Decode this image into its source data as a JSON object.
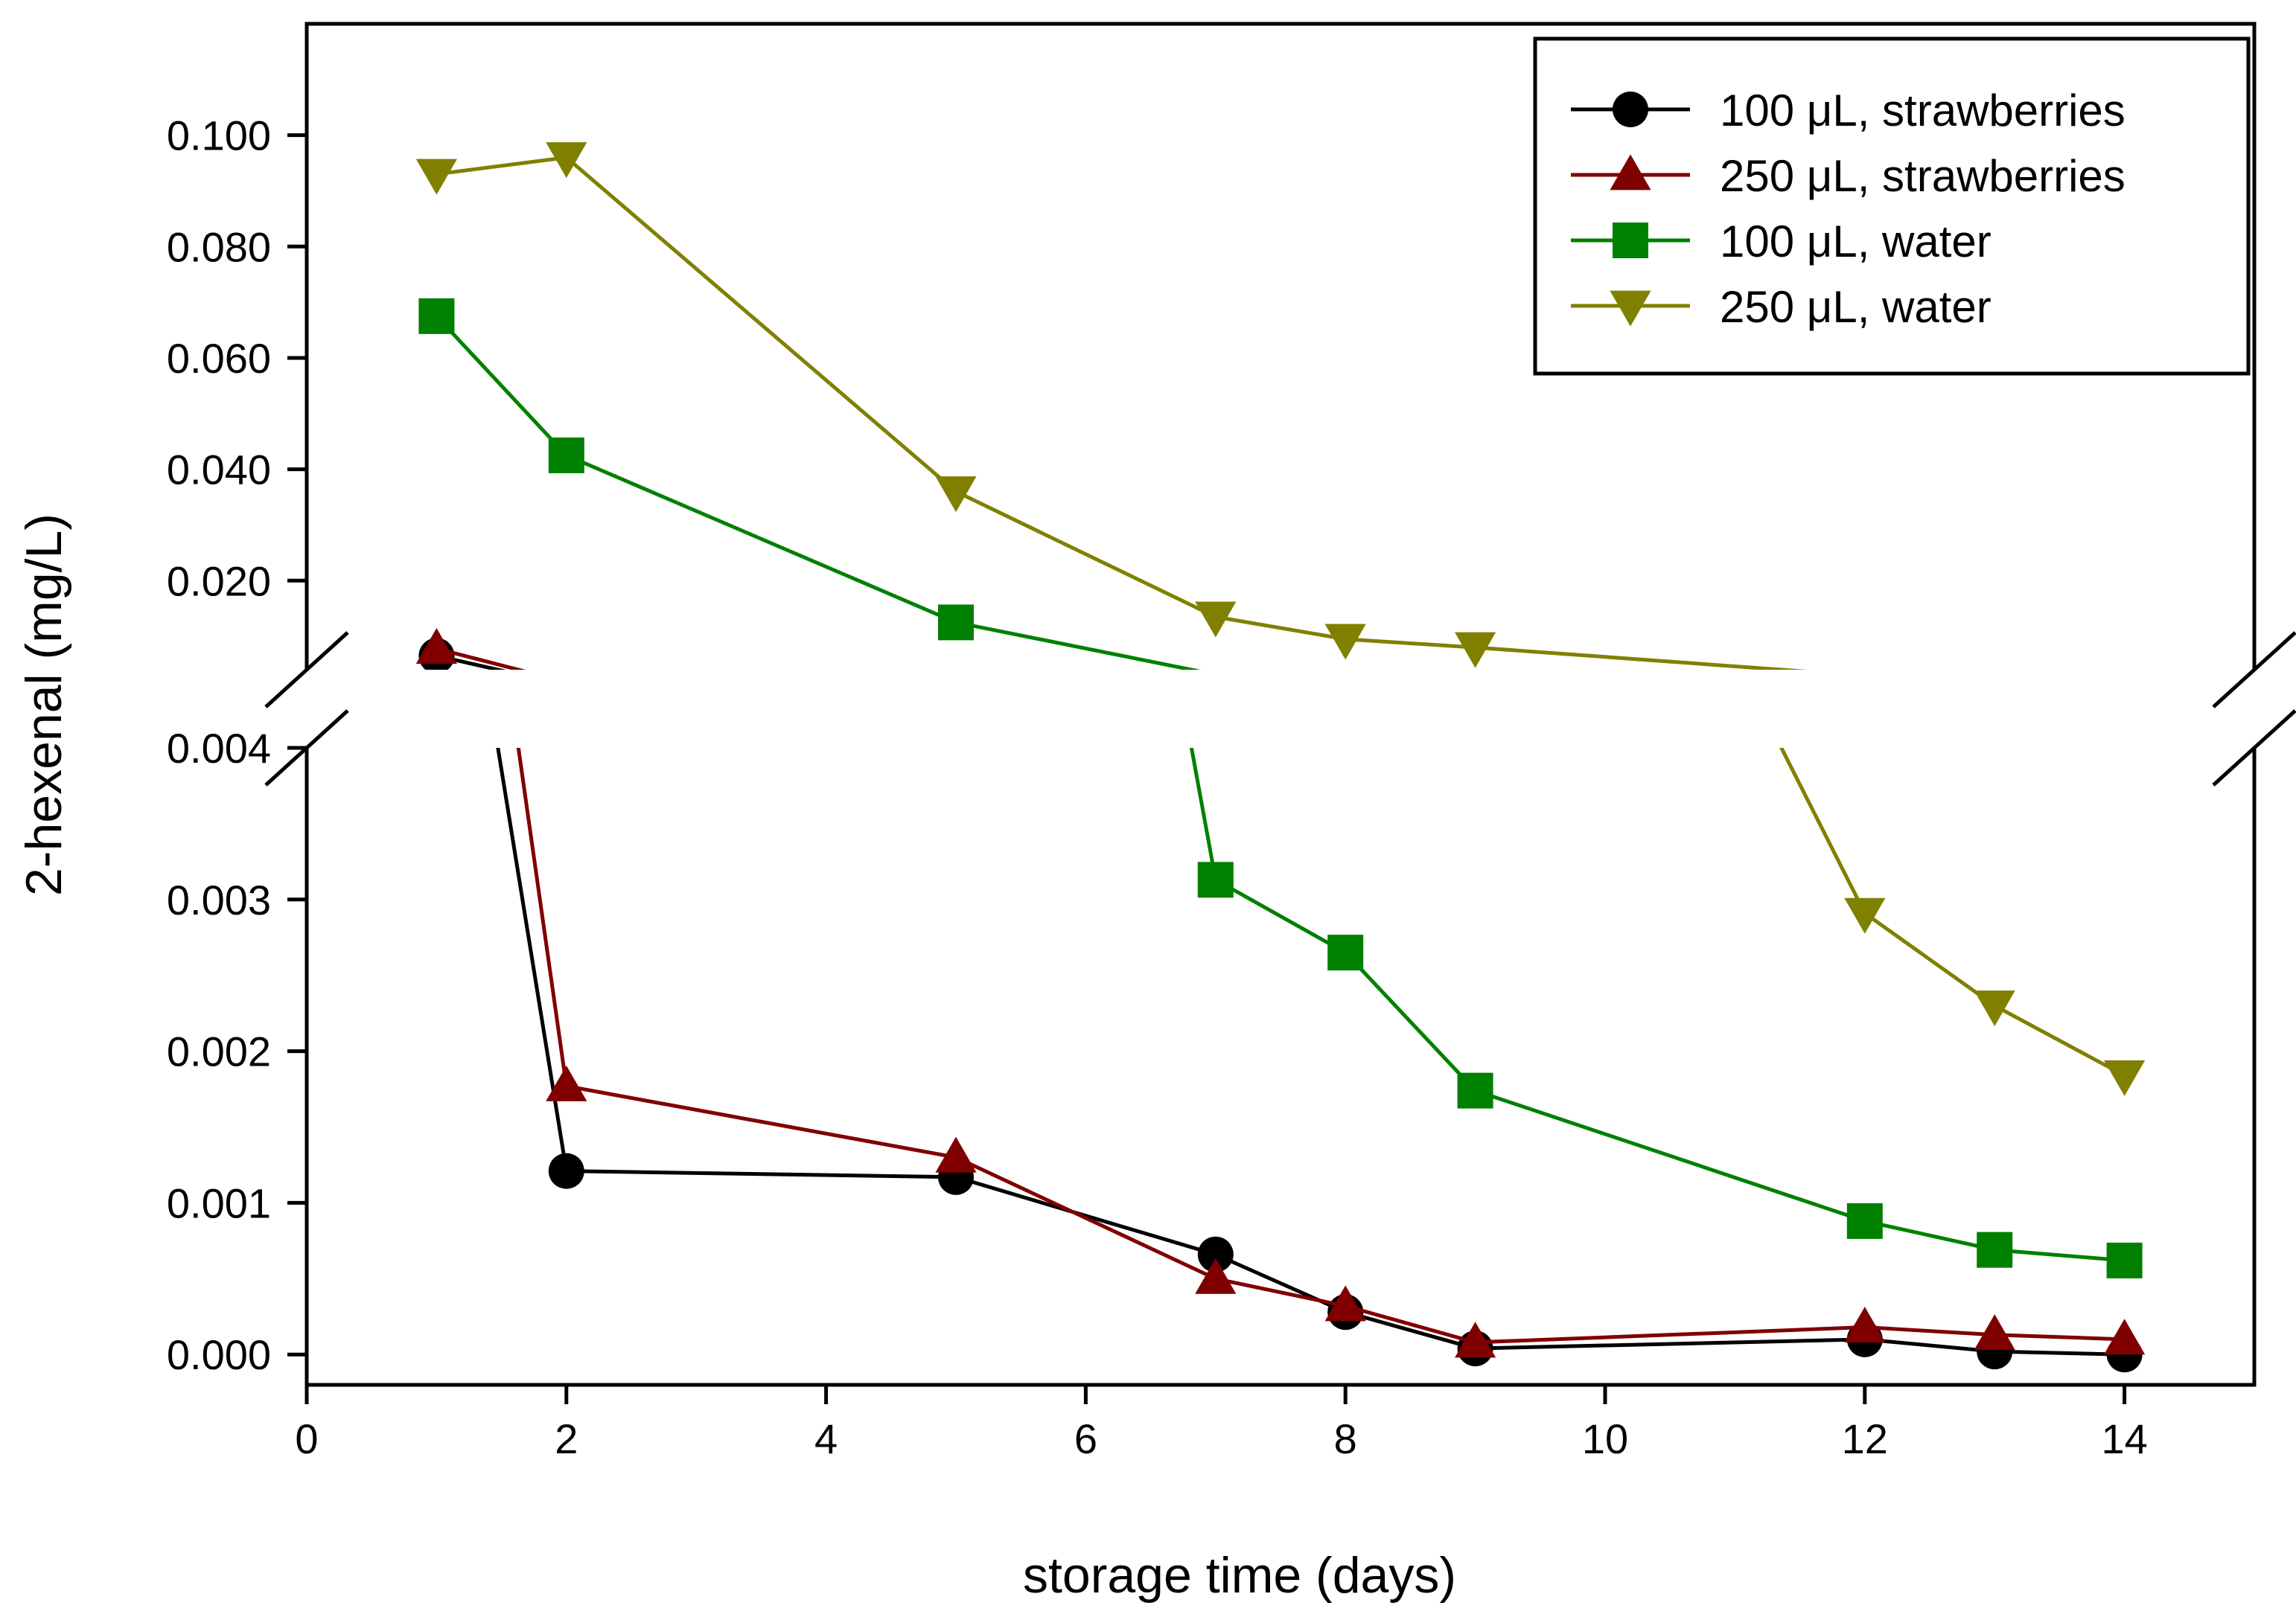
{
  "chart_data": {
    "type": "line",
    "title": "",
    "xlabel": "storage time (days)",
    "ylabel": "2-hexenal (mg/L)",
    "xlim": [
      0,
      15
    ],
    "x_ticks": [
      0,
      2,
      4,
      6,
      8,
      10,
      12,
      14
    ],
    "x_tick_labels": [
      "0",
      "2",
      "4",
      "6",
      "8",
      "10",
      "12",
      "14"
    ],
    "y_axis_break": {
      "lower_range": [
        -0.0002,
        0.004
      ],
      "upper_range": [
        0.004,
        0.12
      ],
      "lower_ticks": [
        0.0,
        0.001,
        0.002,
        0.003,
        0.004
      ],
      "lower_tick_labels": [
        "0.000",
        "0.001",
        "0.002",
        "0.003",
        "0.004"
      ],
      "upper_ticks": [
        0.02,
        0.04,
        0.06,
        0.08,
        0.1
      ],
      "upper_tick_labels": [
        "0.020",
        "0.040",
        "0.060",
        "0.080",
        "0.100"
      ]
    },
    "grid": false,
    "legend_position": "top-right",
    "x": [
      1,
      2,
      5,
      7,
      8,
      9,
      12,
      13,
      14
    ],
    "series": [
      {
        "name": "100 μL, strawberries",
        "color": "#000000",
        "marker": "circle",
        "values": [
          0.0065,
          0.00121,
          0.00117,
          0.00066,
          0.00028,
          4e-05,
          0.0001,
          2e-05,
          0.0
        ]
      },
      {
        "name": "250 μL, strawberries",
        "color": "#800000",
        "marker": "triangle-up",
        "values": [
          0.0078,
          0.00177,
          0.0013,
          0.0005,
          0.00032,
          8e-05,
          0.00018,
          0.00013,
          0.0001
        ]
      },
      {
        "name": "100 μL, water",
        "color": "#008000",
        "marker": "square",
        "values": [
          0.0675,
          0.0425,
          0.0125,
          0.00313,
          0.00265,
          0.00174,
          0.00088,
          0.00069,
          0.00062
        ]
      },
      {
        "name": "250 μL, water",
        "color": "#808000",
        "marker": "triangle-down",
        "values": [
          0.093,
          0.096,
          0.036,
          0.0135,
          0.0095,
          0.008,
          0.00291,
          0.0023,
          0.00184
        ]
      }
    ]
  }
}
